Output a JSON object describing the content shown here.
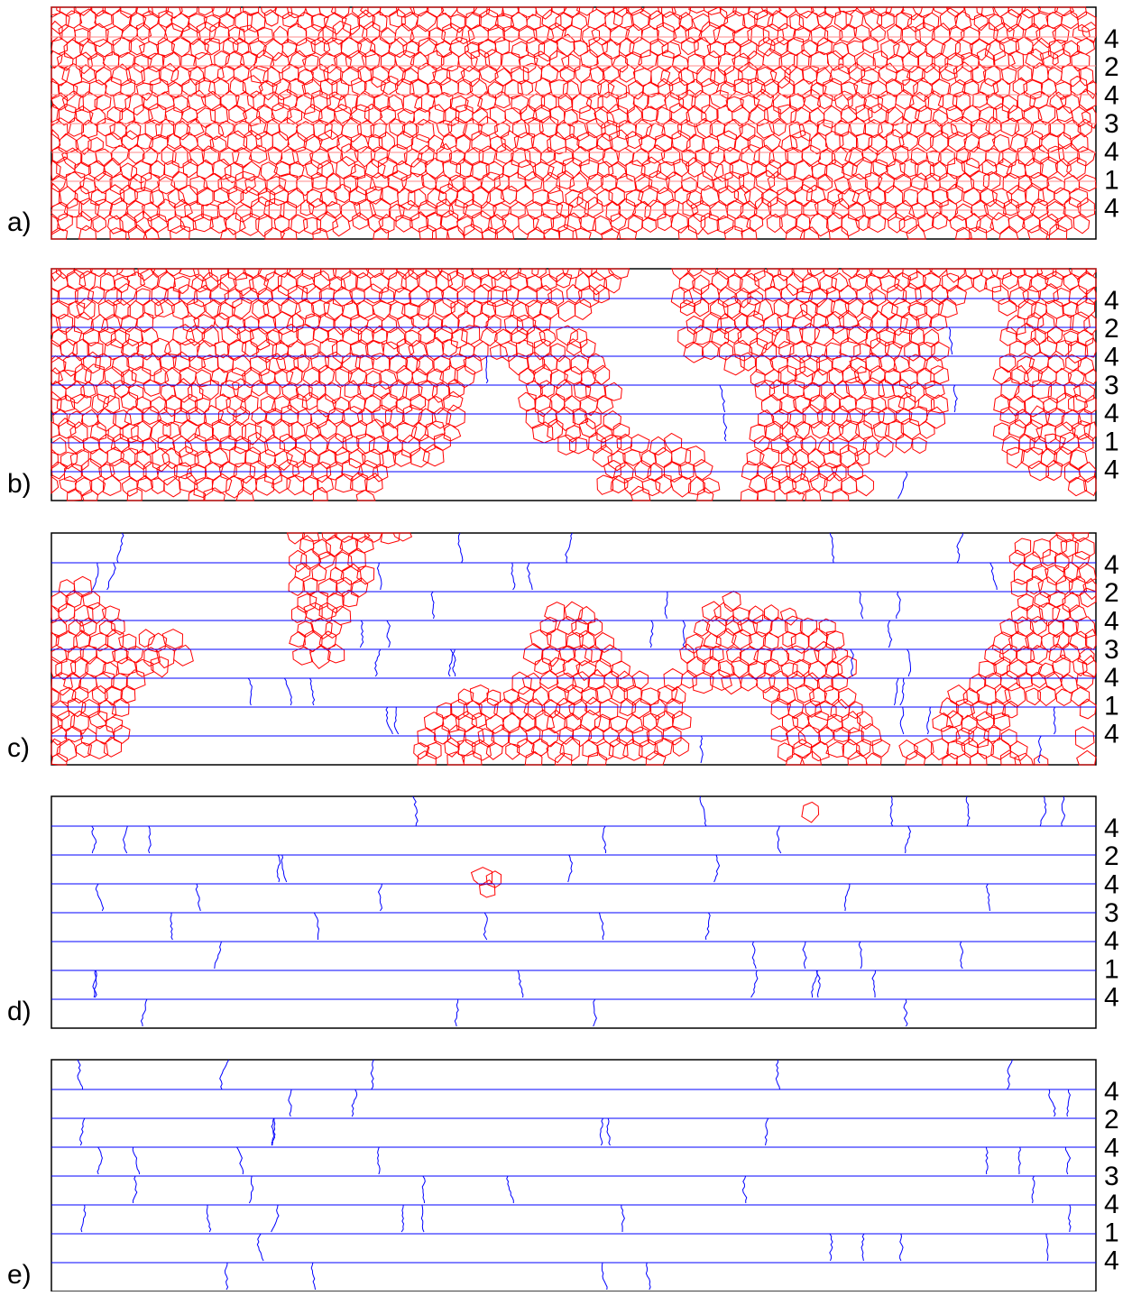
{
  "panels": [
    {
      "label": "a)",
      "layers": [
        "4",
        "2",
        "4",
        "3",
        "4",
        "1",
        "4"
      ]
    },
    {
      "label": "b)",
      "layers": [
        "4",
        "2",
        "4",
        "3",
        "4",
        "1",
        "4"
      ]
    },
    {
      "label": "c)",
      "layers": [
        "4",
        "2",
        "4",
        "3",
        "4",
        "1",
        "4"
      ]
    },
    {
      "label": "d)",
      "layers": [
        "4",
        "2",
        "4",
        "3",
        "4",
        "1",
        "4"
      ]
    },
    {
      "label": "e)",
      "layers": [
        "4",
        "2",
        "4",
        "3",
        "4",
        "1",
        "4"
      ]
    }
  ]
}
